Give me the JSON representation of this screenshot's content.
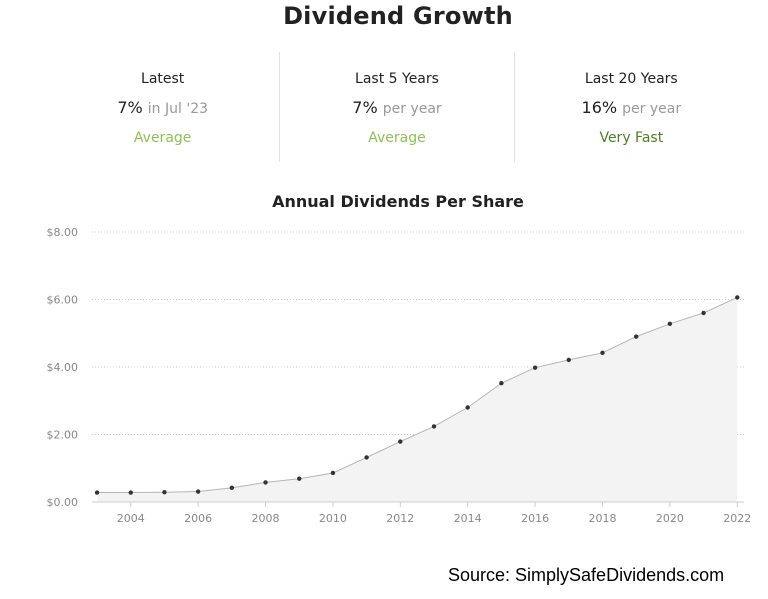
{
  "page_title": "Dividend Growth",
  "summary": [
    {
      "label": "Latest",
      "value": "7%",
      "unit": "in Jul '23",
      "rating": "Average",
      "rating_color": "#8fbf5a"
    },
    {
      "label": "Last 5 Years",
      "value": "7%",
      "unit": "per year",
      "rating": "Average",
      "rating_color": "#8fbf5a"
    },
    {
      "label": "Last 20 Years",
      "value": "16%",
      "unit": "per year",
      "rating": "Very Fast",
      "rating_color": "#4e7d2a"
    }
  ],
  "chart_data": {
    "type": "area",
    "title": "Annual Dividends Per Share",
    "xlabel": "",
    "ylabel": "",
    "x": [
      2003,
      2004,
      2005,
      2006,
      2007,
      2008,
      2009,
      2010,
      2011,
      2012,
      2013,
      2014,
      2015,
      2016,
      2017,
      2018,
      2019,
      2020,
      2021,
      2022
    ],
    "series": [
      {
        "values": [
          0.28,
          0.28,
          0.29,
          0.31,
          0.42,
          0.58,
          0.69,
          0.86,
          1.32,
          1.79,
          2.24,
          2.8,
          3.52,
          3.98,
          4.21,
          4.42,
          4.9,
          5.28,
          5.6,
          6.06
        ]
      }
    ],
    "ylim": [
      0,
      8
    ],
    "y_ticks": [
      "$0.00",
      "$2.00",
      "$4.00",
      "$6.00",
      "$8.00"
    ],
    "x_ticks": [
      "2004",
      "2006",
      "2008",
      "2010",
      "2012",
      "2014",
      "2016",
      "2018",
      "2020",
      "2022"
    ],
    "grid": true,
    "colors": {
      "line": "#b5b5b5",
      "fill": "#f3f3f3",
      "marker": "#333333",
      "grid": "#cccccc",
      "tick": "#888888"
    }
  },
  "source": "Source: SimplySafeDividends.com"
}
